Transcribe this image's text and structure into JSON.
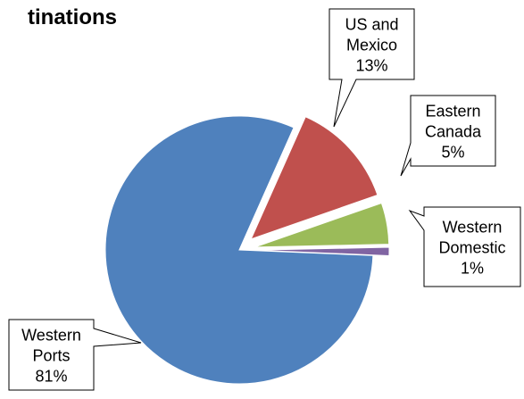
{
  "chart_data": {
    "type": "pie",
    "title": "tinations",
    "categories": [
      "Western Ports",
      "US and Mexico",
      "Eastern Canada",
      "Western Domestic"
    ],
    "values": [
      81,
      13,
      5,
      1
    ],
    "labels": [
      {
        "lines": [
          "Western",
          "Ports",
          "81%"
        ]
      },
      {
        "lines": [
          "US and",
          "Mexico",
          "13%"
        ]
      },
      {
        "lines": [
          "Eastern",
          "Canada",
          "5%"
        ]
      },
      {
        "lines": [
          "Western",
          "Domestic",
          "1%"
        ]
      }
    ],
    "colors": [
      "#4F81BD",
      "#C0504D",
      "#9BBB59",
      "#8064A2"
    ],
    "exploded": [
      false,
      true,
      true,
      true
    ],
    "legend": "none"
  }
}
